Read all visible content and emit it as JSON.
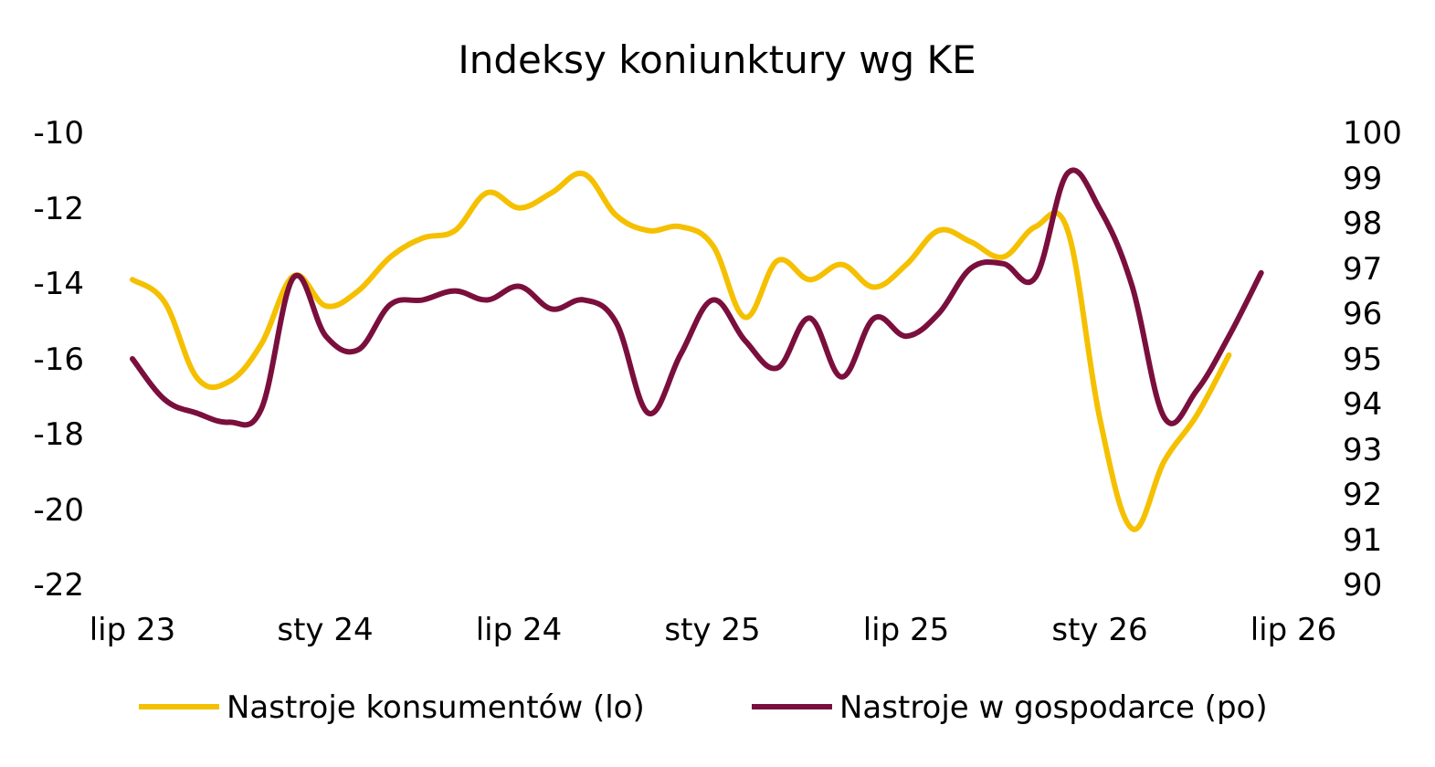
{
  "chart_data": {
    "type": "line",
    "title": "Indeksy koniunktury wg KE",
    "x_tick_labels": [
      "lip 23",
      "sty 24",
      "lip 24",
      "sty 25",
      "lip 25",
      "sty 26",
      "lip 26"
    ],
    "left_axis": {
      "ylim": [
        -22,
        -10
      ],
      "ticks": [
        "-10",
        "-12",
        "-14",
        "-16",
        "-18",
        "-20",
        "-22"
      ]
    },
    "right_axis": {
      "ylim": [
        90,
        100
      ],
      "ticks": [
        "100",
        "99",
        "98",
        "97",
        "96",
        "95",
        "94",
        "93",
        "92",
        "91",
        "90"
      ]
    },
    "x": [
      "2023-07",
      "2023-08",
      "2023-09",
      "2023-10",
      "2023-11",
      "2023-12",
      "2024-01",
      "2024-02",
      "2024-03",
      "2024-04",
      "2024-05",
      "2024-06",
      "2024-07",
      "2024-08",
      "2024-09",
      "2024-10",
      "2024-11",
      "2024-12",
      "2025-01",
      "2025-02",
      "2025-03",
      "2025-04",
      "2025-05",
      "2025-06",
      "2025-07",
      "2025-08",
      "2025-09",
      "2025-10",
      "2025-11",
      "2025-12",
      "2026-01",
      "2026-02",
      "2026-03",
      "2026-04",
      "2026-05",
      "2026-06",
      "2026-07"
    ],
    "series": [
      {
        "name": "Nastroje konsumentów (lo)",
        "axis": "left",
        "color": "#F5C000",
        "values": [
          -13.9,
          -14.5,
          -16.5,
          -16.6,
          -15.6,
          -13.8,
          -14.6,
          -14.2,
          -13.3,
          -12.8,
          -12.6,
          -11.6,
          -12.0,
          -11.6,
          -11.1,
          -12.2,
          -12.6,
          -12.5,
          -13.0,
          -14.9,
          -13.4,
          -13.9,
          -13.5,
          -14.1,
          -13.5,
          -12.6,
          -12.9,
          -13.3,
          -12.5,
          -12.6,
          -17.6,
          -20.5,
          -18.7,
          -17.5,
          -15.9,
          null,
          null
        ]
      },
      {
        "name": "Nastroje w gospodarce (po)",
        "axis": "right",
        "color": "#7A0F3D",
        "values": [
          95.0,
          94.1,
          93.8,
          93.6,
          93.9,
          96.8,
          95.5,
          95.2,
          96.2,
          96.3,
          96.5,
          96.3,
          96.6,
          96.1,
          96.3,
          95.8,
          93.8,
          95.1,
          96.3,
          95.4,
          94.8,
          95.9,
          94.6,
          95.9,
          95.5,
          96.0,
          97.0,
          97.1,
          96.8,
          99.1,
          98.3,
          96.6,
          93.7,
          94.3,
          95.5,
          96.9,
          null
        ]
      }
    ]
  }
}
